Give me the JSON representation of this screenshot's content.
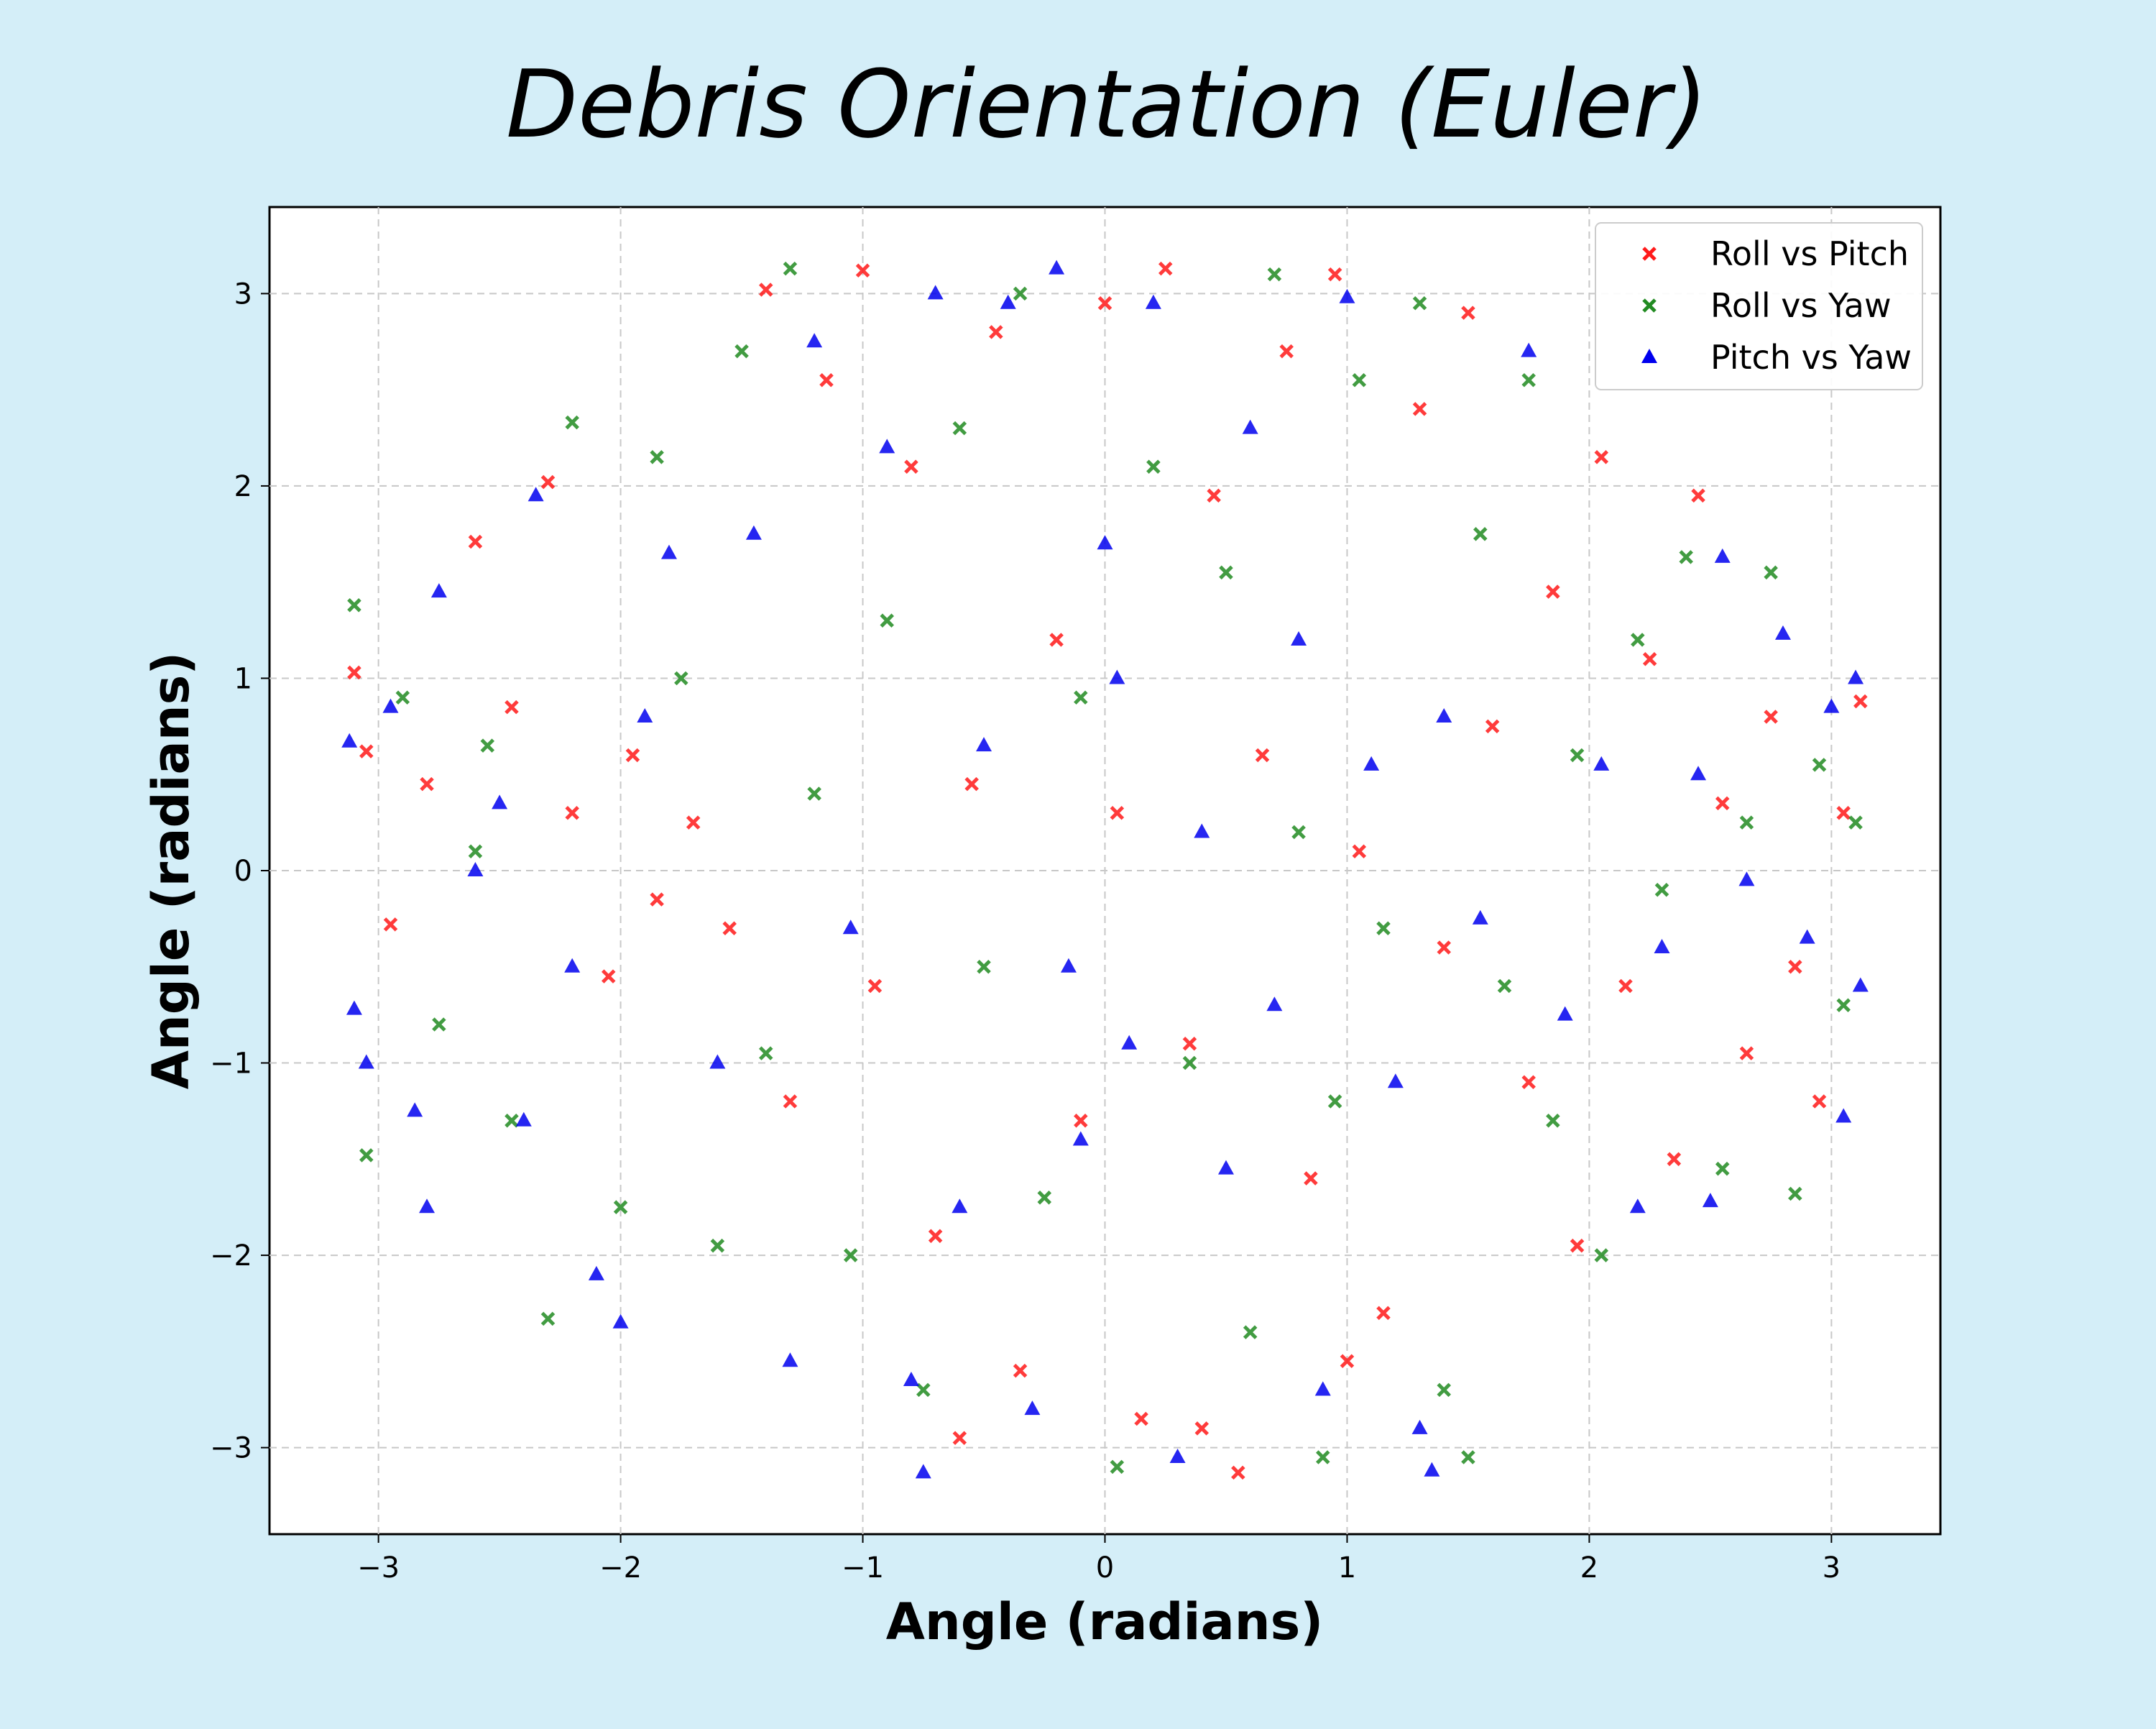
{
  "chart_data": {
    "type": "scatter",
    "title": "Debris Orientation (Euler)",
    "xlabel": "Angle (radians)",
    "ylabel": "Angle (radians)",
    "xlim": [
      -3.45,
      3.45
    ],
    "ylim": [
      -3.45,
      3.45
    ],
    "xticks": [
      -3,
      -2,
      -1,
      0,
      1,
      2,
      3
    ],
    "yticks": [
      -3,
      -2,
      -1,
      0,
      1,
      2,
      3
    ],
    "xtick_labels": [
      "−3",
      "−2",
      "−1",
      "0",
      "1",
      "2",
      "3"
    ],
    "ytick_labels": [
      "−3",
      "−2",
      "−1",
      "0",
      "1",
      "2",
      "3"
    ],
    "grid": true,
    "grid_style": "dashed",
    "legend_position": "top-right",
    "background_color": "#d4eef8",
    "plot_background": "#ffffff",
    "series": [
      {
        "name": "Roll vs Pitch",
        "marker": "x",
        "color": "#ff1a1a",
        "points": [
          [
            -3.1,
            1.03
          ],
          [
            -3.05,
            0.62
          ],
          [
            -2.95,
            -0.28
          ],
          [
            -2.8,
            0.45
          ],
          [
            -2.6,
            1.71
          ],
          [
            -2.45,
            0.85
          ],
          [
            -2.3,
            2.02
          ],
          [
            -2.2,
            0.3
          ],
          [
            -2.05,
            -0.55
          ],
          [
            -1.95,
            0.6
          ],
          [
            -1.85,
            -0.15
          ],
          [
            -1.7,
            0.25
          ],
          [
            -1.55,
            -0.3
          ],
          [
            -1.4,
            3.02
          ],
          [
            -1.3,
            -1.2
          ],
          [
            -1.15,
            2.55
          ],
          [
            -1.0,
            3.12
          ],
          [
            -0.95,
            -0.6
          ],
          [
            -0.8,
            2.1
          ],
          [
            -0.7,
            -1.9
          ],
          [
            -0.55,
            0.45
          ],
          [
            -0.45,
            2.8
          ],
          [
            -0.35,
            -2.6
          ],
          [
            -0.2,
            1.2
          ],
          [
            -0.1,
            -1.3
          ],
          [
            0.0,
            2.95
          ],
          [
            0.05,
            0.3
          ],
          [
            0.15,
            -2.85
          ],
          [
            0.25,
            3.13
          ],
          [
            0.35,
            -0.9
          ],
          [
            0.45,
            1.95
          ],
          [
            0.55,
            -3.13
          ],
          [
            0.65,
            0.6
          ],
          [
            0.75,
            2.7
          ],
          [
            0.85,
            -1.6
          ],
          [
            0.95,
            3.1
          ],
          [
            1.05,
            0.1
          ],
          [
            1.15,
            -2.3
          ],
          [
            1.3,
            2.4
          ],
          [
            1.4,
            -0.4
          ],
          [
            1.5,
            2.9
          ],
          [
            1.6,
            0.75
          ],
          [
            1.75,
            -1.1
          ],
          [
            1.85,
            1.45
          ],
          [
            1.95,
            -1.95
          ],
          [
            2.05,
            2.15
          ],
          [
            2.15,
            -0.6
          ],
          [
            2.25,
            1.1
          ],
          [
            2.35,
            -1.5
          ],
          [
            2.45,
            1.95
          ],
          [
            2.55,
            0.35
          ],
          [
            2.65,
            -0.95
          ],
          [
            2.75,
            0.8
          ],
          [
            2.85,
            -0.5
          ],
          [
            2.95,
            -1.2
          ],
          [
            3.05,
            0.3
          ],
          [
            3.12,
            0.88
          ],
          [
            1.0,
            -2.55
          ],
          [
            -0.6,
            -2.95
          ],
          [
            0.4,
            -2.9
          ]
        ]
      },
      {
        "name": "Roll vs Yaw",
        "marker": "x",
        "color": "#228b22",
        "points": [
          [
            -3.1,
            1.38
          ],
          [
            -3.05,
            -1.48
          ],
          [
            -2.9,
            0.9
          ],
          [
            -2.75,
            -0.8
          ],
          [
            -2.6,
            0.1
          ],
          [
            -2.45,
            -1.3
          ],
          [
            -2.3,
            -2.33
          ],
          [
            -2.2,
            2.33
          ],
          [
            -2.0,
            -1.75
          ],
          [
            -1.85,
            2.15
          ],
          [
            -1.75,
            1.0
          ],
          [
            -1.6,
            -1.95
          ],
          [
            -1.5,
            2.7
          ],
          [
            -1.3,
            3.13
          ],
          [
            -1.2,
            0.4
          ],
          [
            -1.05,
            -2.0
          ],
          [
            -0.9,
            1.3
          ],
          [
            -0.75,
            -2.7
          ],
          [
            -0.6,
            2.3
          ],
          [
            -0.5,
            -0.5
          ],
          [
            -0.35,
            3.0
          ],
          [
            -0.25,
            -1.7
          ],
          [
            -0.1,
            0.9
          ],
          [
            0.05,
            -3.1
          ],
          [
            0.2,
            2.1
          ],
          [
            0.35,
            -1.0
          ],
          [
            0.5,
            1.55
          ],
          [
            0.6,
            -2.4
          ],
          [
            0.7,
            3.1
          ],
          [
            0.8,
            0.2
          ],
          [
            0.95,
            -1.2
          ],
          [
            1.05,
            2.55
          ],
          [
            1.15,
            -0.3
          ],
          [
            1.3,
            2.95
          ],
          [
            1.4,
            -2.7
          ],
          [
            1.55,
            1.75
          ],
          [
            1.65,
            -0.6
          ],
          [
            1.75,
            2.55
          ],
          [
            1.85,
            -1.3
          ],
          [
            1.95,
            0.6
          ],
          [
            2.05,
            -2.0
          ],
          [
            2.2,
            1.2
          ],
          [
            2.3,
            -0.1
          ],
          [
            2.4,
            1.63
          ],
          [
            2.55,
            -1.55
          ],
          [
            2.65,
            0.25
          ],
          [
            2.75,
            1.55
          ],
          [
            2.85,
            -1.68
          ],
          [
            2.95,
            0.55
          ],
          [
            3.05,
            -0.7
          ],
          [
            3.1,
            0.25
          ],
          [
            -2.55,
            0.65
          ],
          [
            -1.4,
            -0.95
          ],
          [
            0.9,
            -3.05
          ],
          [
            1.5,
            -3.05
          ]
        ]
      },
      {
        "name": "Pitch vs Yaw",
        "marker": "^",
        "color": "#0000ee",
        "points": [
          [
            -3.12,
            0.67
          ],
          [
            -3.1,
            -0.72
          ],
          [
            -3.05,
            -1.0
          ],
          [
            -2.95,
            0.85
          ],
          [
            -2.85,
            -1.25
          ],
          [
            -2.75,
            1.45
          ],
          [
            -2.8,
            -1.75
          ],
          [
            -2.6,
            0.0
          ],
          [
            -2.5,
            0.35
          ],
          [
            -2.4,
            -1.3
          ],
          [
            -2.35,
            1.95
          ],
          [
            -2.2,
            -0.5
          ],
          [
            -2.1,
            -2.1
          ],
          [
            -2.0,
            -2.35
          ],
          [
            -1.9,
            0.8
          ],
          [
            -1.8,
            1.65
          ],
          [
            -1.6,
            -1.0
          ],
          [
            -1.45,
            1.75
          ],
          [
            -1.3,
            -2.55
          ],
          [
            -1.2,
            2.75
          ],
          [
            -1.05,
            -0.3
          ],
          [
            -0.9,
            2.2
          ],
          [
            -0.8,
            -2.65
          ],
          [
            -0.7,
            3.0
          ],
          [
            -0.6,
            -1.75
          ],
          [
            -0.5,
            0.65
          ],
          [
            -0.4,
            2.95
          ],
          [
            -0.3,
            -2.8
          ],
          [
            -0.2,
            3.13
          ],
          [
            -0.1,
            -1.4
          ],
          [
            0.0,
            1.7
          ],
          [
            0.1,
            -0.9
          ],
          [
            0.2,
            2.95
          ],
          [
            0.3,
            -3.05
          ],
          [
            0.4,
            0.2
          ],
          [
            0.5,
            -1.55
          ],
          [
            0.6,
            2.3
          ],
          [
            0.7,
            -0.7
          ],
          [
            0.8,
            1.2
          ],
          [
            0.9,
            -2.7
          ],
          [
            1.0,
            2.98
          ],
          [
            1.1,
            0.55
          ],
          [
            1.2,
            -1.1
          ],
          [
            1.3,
            -2.9
          ],
          [
            1.4,
            0.8
          ],
          [
            1.55,
            -0.25
          ],
          [
            1.75,
            2.7
          ],
          [
            1.9,
            -0.75
          ],
          [
            2.05,
            0.55
          ],
          [
            2.2,
            -1.75
          ],
          [
            2.3,
            -0.4
          ],
          [
            2.45,
            0.5
          ],
          [
            2.5,
            -1.72
          ],
          [
            2.55,
            1.63
          ],
          [
            2.65,
            -0.05
          ],
          [
            2.8,
            1.23
          ],
          [
            2.9,
            -0.35
          ],
          [
            3.0,
            0.85
          ],
          [
            3.1,
            1.0
          ],
          [
            3.12,
            -0.6
          ],
          [
            3.05,
            -1.28
          ],
          [
            -0.75,
            -3.13
          ],
          [
            1.35,
            -3.12
          ],
          [
            0.05,
            1.0
          ],
          [
            -0.15,
            -0.5
          ]
        ]
      }
    ]
  }
}
